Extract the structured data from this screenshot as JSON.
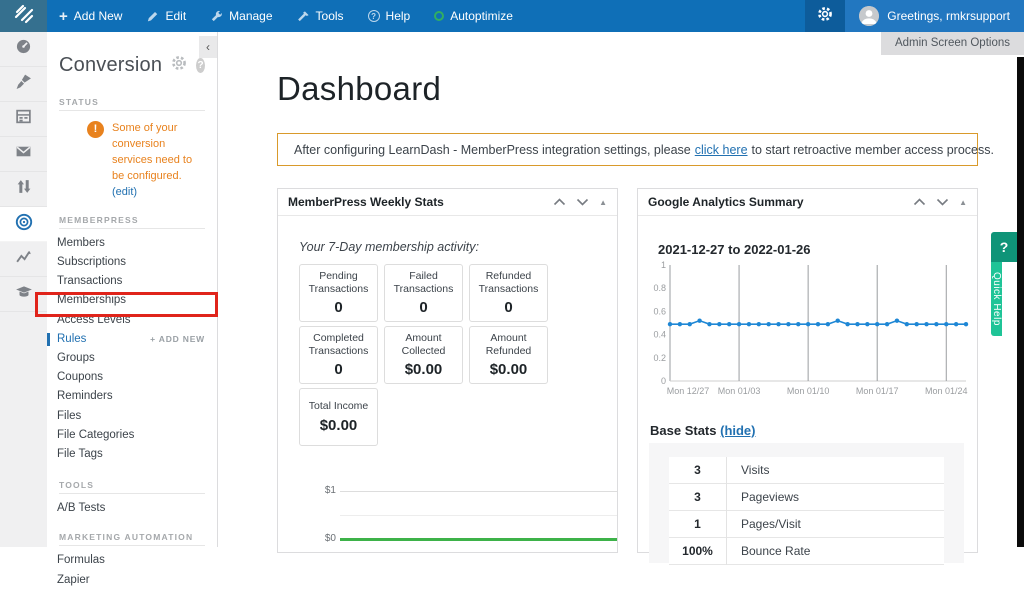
{
  "admin_bar": {
    "menu": [
      {
        "label": "Add New",
        "icon": "plus-icon"
      },
      {
        "label": "Edit",
        "icon": "pencil-icon"
      },
      {
        "label": "Manage",
        "icon": "wrench-icon"
      },
      {
        "label": "Tools",
        "icon": "hammer-icon"
      },
      {
        "label": "Help",
        "icon": "help-icon"
      },
      {
        "label": "Autoptimize",
        "icon": "autoptimize-ring-icon"
      }
    ],
    "greeting": "Greetings, rmkrsupport"
  },
  "screen_options": {
    "label": "Admin Screen Options"
  },
  "icon_rail": [
    "dashboard-gauge-icon",
    "brush-icon",
    "forms-icon",
    "mail-icon",
    "sort-arrows-icon",
    "target-icon",
    "analytics-chart-icon",
    "graduation-cap-icon"
  ],
  "sidebar": {
    "title": "Conversion",
    "collapse_glyph": "‹",
    "status": {
      "heading": "STATUS",
      "warning": "Some of your conversion services need to be configured.",
      "edit_link": "(edit)"
    },
    "memberpress": {
      "heading": "MEMBERPRESS",
      "items": [
        "Members",
        "Subscriptions",
        "Transactions",
        "Memberships",
        "Access Levels",
        "Rules",
        "Groups",
        "Coupons",
        "Reminders",
        "Files",
        "File Categories",
        "File Tags"
      ],
      "active_item": "Rules",
      "add_new_label": "+ ADD NEW"
    },
    "tools": {
      "heading": "TOOLS",
      "items": [
        "A/B Tests"
      ]
    },
    "marketing": {
      "heading": "MARKETING AUTOMATION",
      "items": [
        "Formulas",
        "Zapier"
      ]
    }
  },
  "main": {
    "title": "Dashboard",
    "notice": {
      "text_before": "After configuring LearnDash - MemberPress integration settings, please",
      "link": "click here",
      "text_after": "to start retroactive member access process."
    },
    "weekly_stats": {
      "title": "MemberPress Weekly Stats",
      "subtitle": "Your 7-Day membership activity:",
      "boxes": [
        {
          "label": "Pending Transactions",
          "value": "0"
        },
        {
          "label": "Failed Transactions",
          "value": "0"
        },
        {
          "label": "Refunded Transactions",
          "value": "0"
        },
        {
          "label": "Completed Transactions",
          "value": "0"
        },
        {
          "label": "Amount Collected",
          "value": "$0.00"
        },
        {
          "label": "Amount Refunded",
          "value": "$0.00"
        },
        {
          "label": "Total Income",
          "value": "$0.00"
        }
      ]
    },
    "ga_summary": {
      "title": "Google Analytics Summary",
      "date_range": "2021-12-27 to 2022-01-26",
      "base_stats": {
        "label": "Base Stats",
        "toggle_link": "(hide)",
        "rows": [
          {
            "value": "3",
            "label": "Visits"
          },
          {
            "value": "3",
            "label": "Pageviews"
          },
          {
            "value": "1",
            "label": "Pages/Visit"
          },
          {
            "value": "100%",
            "label": "Bounce Rate"
          }
        ]
      }
    }
  },
  "quick_help": {
    "icon": "?",
    "label": "Quick Help"
  },
  "chart_data": [
    {
      "type": "line",
      "title": "Google Analytics Summary",
      "subtitle": "2021-12-27 to 2022-01-26",
      "x_days": 31,
      "values": [
        0.49,
        0.49,
        0.49,
        0.52,
        0.49,
        0.49,
        0.49,
        0.49,
        0.49,
        0.49,
        0.49,
        0.49,
        0.49,
        0.49,
        0.49,
        0.49,
        0.49,
        0.52,
        0.49,
        0.49,
        0.49,
        0.49,
        0.49,
        0.52,
        0.49,
        0.49,
        0.49,
        0.49,
        0.49,
        0.49,
        0.49
      ],
      "ylim": [
        0,
        1
      ],
      "yticks": [
        0,
        0.2,
        0.4,
        0.6,
        0.8,
        1
      ],
      "xtick_positions": [
        0,
        7,
        14,
        21,
        28
      ],
      "xtick_labels": [
        "Mon 12/27",
        "Mon 01/03",
        "Mon 01/10",
        "Mon 01/17",
        "Mon 01/24"
      ],
      "line_color": "#1e87d5",
      "grid": "vertical-only",
      "legend": "none"
    },
    {
      "type": "line",
      "title": "MemberPress weekly income",
      "yticks": [
        "$1",
        "$0"
      ],
      "values": [
        0,
        0,
        0,
        0,
        0,
        0,
        0
      ],
      "line_color": "#3db249",
      "grid": "horizontal-only"
    }
  ],
  "colors": {
    "admin_bar_blue": "#0f6fb7",
    "link_blue": "#2271b1",
    "warning_orange": "#e8821e",
    "notice_border": "#d99a2b",
    "quick_help_dark": "#0f9478",
    "quick_help_light": "#1fc497",
    "annotation_red": "#e0241b",
    "ga_line_blue": "#1e87d5",
    "income_line_green": "#3db249"
  }
}
